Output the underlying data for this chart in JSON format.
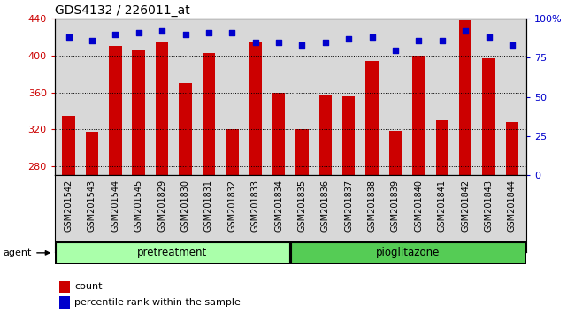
{
  "title": "GDS4132 / 226011_at",
  "categories": [
    "GSM201542",
    "GSM201543",
    "GSM201544",
    "GSM201545",
    "GSM201829",
    "GSM201830",
    "GSM201831",
    "GSM201832",
    "GSM201833",
    "GSM201834",
    "GSM201835",
    "GSM201836",
    "GSM201837",
    "GSM201838",
    "GSM201839",
    "GSM201840",
    "GSM201841",
    "GSM201842",
    "GSM201843",
    "GSM201844"
  ],
  "bar_values": [
    335,
    317,
    410,
    407,
    415,
    370,
    403,
    320,
    415,
    360,
    320,
    358,
    356,
    394,
    318,
    400,
    330,
    438,
    397,
    328
  ],
  "dot_values": [
    88,
    86,
    90,
    91,
    92,
    90,
    91,
    91,
    85,
    85,
    83,
    85,
    87,
    88,
    80,
    86,
    86,
    92,
    88,
    83
  ],
  "bar_color": "#cc0000",
  "dot_color": "#0000cc",
  "ylim_left": [
    270,
    440
  ],
  "ylim_right": [
    0,
    100
  ],
  "yticks_left": [
    280,
    320,
    360,
    400,
    440
  ],
  "yticks_right": [
    0,
    25,
    50,
    75,
    100
  ],
  "yticklabels_right": [
    "0",
    "25",
    "50",
    "75",
    "100%"
  ],
  "group1_color": "#aaffaa",
  "group2_color": "#55cc55",
  "agent_label": "agent",
  "legend_count": "count",
  "legend_pct": "percentile rank within the sample",
  "bg_color": "#d8d8d8",
  "title_fontsize": 10
}
